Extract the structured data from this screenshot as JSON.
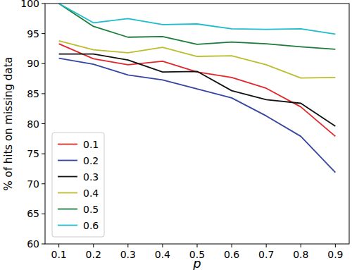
{
  "chart_data": {
    "type": "line",
    "x_label": "p",
    "y_label": "% of hits on missing data",
    "x": [
      0.1,
      0.2,
      0.3,
      0.4,
      0.5,
      0.6,
      0.7,
      0.8,
      0.9
    ],
    "xlim": [
      0.06,
      0.94
    ],
    "xticks": [
      0.1,
      0.2,
      0.3,
      0.4,
      0.5,
      0.6,
      0.7,
      0.8,
      0.9
    ],
    "ylim": [
      60,
      100
    ],
    "yticks": [
      60,
      65,
      70,
      75,
      80,
      85,
      90,
      95,
      100
    ],
    "grid": false,
    "legend": "lower left",
    "series": [
      {
        "name": "0.1",
        "color": "#e3262b",
        "values": [
          93.3,
          90.8,
          89.8,
          90.4,
          88.6,
          87.7,
          85.9,
          82.8,
          77.9
        ]
      },
      {
        "name": "0.2",
        "color": "#3545a0",
        "values": [
          90.9,
          89.9,
          88.1,
          87.3,
          85.8,
          84.3,
          81.3,
          77.9,
          71.9
        ]
      },
      {
        "name": "0.3",
        "color": "#111111",
        "values": [
          91.6,
          91.6,
          90.6,
          88.6,
          88.7,
          85.5,
          84.0,
          83.4,
          79.6
        ]
      },
      {
        "name": "0.4",
        "color": "#bcbd30",
        "values": [
          93.8,
          92.3,
          91.8,
          92.7,
          91.2,
          91.3,
          89.8,
          87.6,
          87.7
        ]
      },
      {
        "name": "0.5",
        "color": "#1b7d3a",
        "values": [
          100,
          96.2,
          94.4,
          94.5,
          93.2,
          93.6,
          93.3,
          92.8,
          92.4
        ]
      },
      {
        "name": "0.6",
        "color": "#1fbccc",
        "values": [
          100,
          96.8,
          97.5,
          96.5,
          96.6,
          95.8,
          95.7,
          95.8,
          94.9
        ]
      }
    ]
  }
}
